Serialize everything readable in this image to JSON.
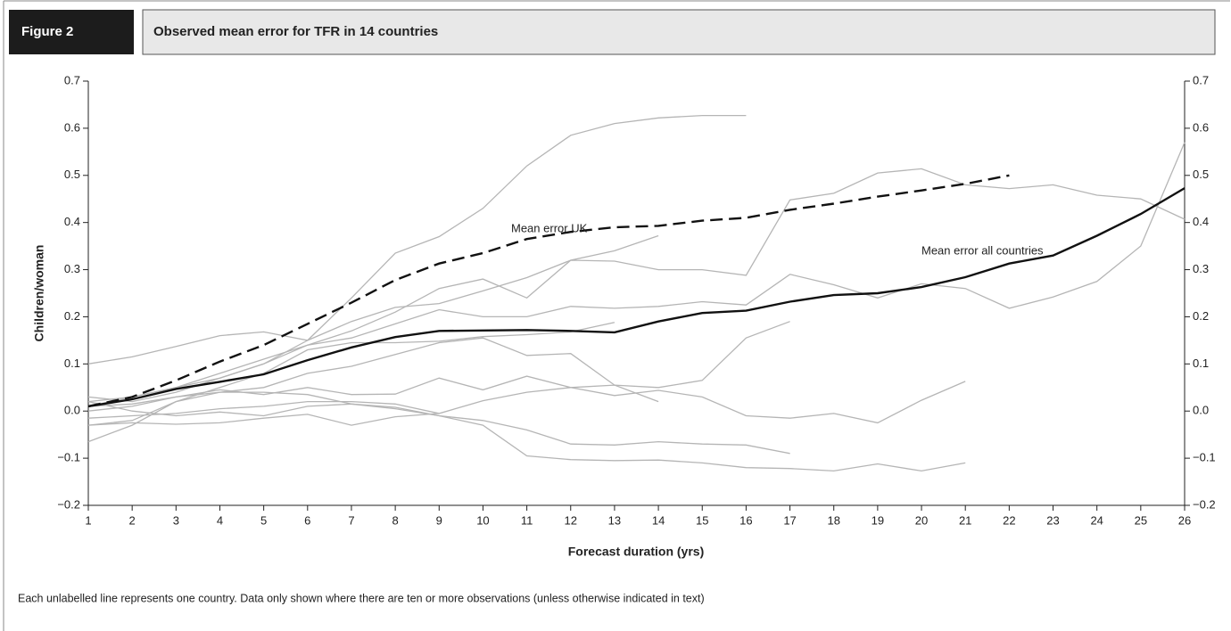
{
  "figure_label": "Figure 2",
  "chart_data": {
    "type": "line",
    "title": "Observed mean error for TFR in 14 countries",
    "x_label": "Forecast duration (yrs)",
    "y_label": "Children/woman",
    "note": "Each unlabelled line represents one country. Data only shown where there are ten or more observations (unless otherwise indicated in text)",
    "x": [
      1,
      2,
      3,
      4,
      5,
      6,
      7,
      8,
      9,
      10,
      11,
      12,
      13,
      14,
      15,
      16,
      17,
      18,
      19,
      20,
      21,
      22,
      23,
      24,
      25,
      26
    ],
    "xlim": [
      1,
      26
    ],
    "xticks": [
      1,
      2,
      3,
      4,
      5,
      6,
      7,
      8,
      9,
      10,
      11,
      12,
      13,
      14,
      15,
      16,
      17,
      18,
      19,
      20,
      21,
      22,
      23,
      24,
      25,
      26
    ],
    "ylim": [
      -0.2,
      0.7
    ],
    "yticks": [
      {
        "value": -0.2,
        "label": "−0.2"
      },
      {
        "value": -0.1,
        "label": "−0.1"
      },
      {
        "value": 0,
        "label": "0.0"
      },
      0.1,
      0.2,
      0.3,
      0.4,
      0.5,
      0.6,
      0.7
    ],
    "y2lim": [
      -0.2,
      0.7
    ],
    "y2ticks": [
      {
        "value": -0.2,
        "label": "−0.2"
      },
      {
        "value": -0.1,
        "label": "−0.1"
      },
      {
        "value": 0,
        "label": "0.0"
      },
      0.1,
      0.2,
      0.3,
      0.4,
      0.5,
      0.6,
      0.7
    ],
    "series": [
      {
        "color": "#b5b5b5",
        "values": [
          0.02,
          0.03,
          0.05,
          0.07,
          0.1,
          0.15,
          0.24,
          0.335,
          0.37,
          0.43,
          0.52,
          0.585,
          0.61,
          0.622,
          0.627,
          0.627,
          null,
          null,
          null,
          null,
          null,
          null,
          null,
          null,
          null,
          null
        ]
      },
      {
        "color": "#b5b5b5",
        "values": [
          0.1,
          0.115,
          0.137,
          0.16,
          0.168,
          0.15,
          0.19,
          0.22,
          0.228,
          0.255,
          0.283,
          0.32,
          0.318,
          0.3,
          0.3,
          0.288,
          0.448,
          0.462,
          0.505,
          0.514,
          0.48,
          0.472,
          0.48,
          0.458,
          0.45,
          0.407
        ]
      },
      {
        "color": "#b5b5b5",
        "values": [
          0.03,
          0.02,
          0.04,
          0.07,
          0.1,
          0.14,
          0.17,
          0.21,
          0.26,
          0.28,
          0.24,
          0.32,
          0.34,
          0.372,
          null,
          null,
          null,
          null,
          null,
          null,
          null,
          null,
          null,
          null,
          null,
          null
        ]
      },
      {
        "color": "#b5b5b5",
        "values": [
          0.01,
          0.03,
          0.05,
          0.08,
          0.11,
          0.14,
          0.155,
          0.185,
          0.215,
          0.2,
          0.2,
          0.222,
          0.218,
          0.222,
          0.232,
          0.225,
          0.29,
          0.268,
          0.24,
          0.27,
          0.26,
          0.218,
          0.242,
          0.275,
          0.35,
          0.57
        ]
      },
      {
        "color": "#b5b5b5",
        "values": [
          -0.03,
          -0.02,
          0.02,
          0.05,
          0.08,
          0.13,
          0.145,
          0.145,
          0.148,
          0.158,
          0.162,
          0.168,
          0.188,
          null,
          null,
          null,
          null,
          null,
          null,
          null,
          null,
          null,
          null,
          null,
          null,
          null
        ]
      },
      {
        "color": "#b5b5b5",
        "values": [
          0.0,
          0.01,
          0.03,
          0.04,
          0.05,
          0.08,
          0.095,
          0.12,
          0.145,
          0.155,
          0.118,
          0.122,
          0.055,
          0.02,
          null,
          null,
          null,
          null,
          null,
          null,
          null,
          null,
          null,
          null,
          null,
          null
        ]
      },
      {
        "color": "#b5b5b5",
        "values": [
          -0.015,
          -0.01,
          -0.005,
          0.005,
          0.01,
          0.02,
          0.02,
          0.015,
          -0.005,
          0.022,
          0.04,
          0.05,
          0.055,
          0.05,
          0.065,
          0.155,
          0.19,
          null,
          null,
          null,
          null,
          null,
          null,
          null,
          null,
          null
        ]
      },
      {
        "color": "#b5b5b5",
        "values": [
          0.01,
          0.015,
          0.03,
          0.045,
          0.035,
          0.05,
          0.035,
          0.036,
          0.07,
          0.045,
          0.074,
          0.05,
          0.033,
          0.044,
          0.03,
          -0.01,
          -0.015,
          -0.005,
          -0.025,
          0.023,
          0.063,
          null,
          null,
          null,
          null,
          null
        ]
      },
      {
        "color": "#b5b5b5",
        "values": [
          -0.065,
          -0.03,
          0.02,
          0.04,
          0.04,
          0.035,
          0.015,
          0.008,
          -0.01,
          -0.03,
          -0.095,
          -0.103,
          -0.105,
          -0.104,
          -0.11,
          -0.12,
          -0.122,
          -0.127,
          -0.112,
          -0.127,
          -0.11,
          null,
          null,
          null,
          null,
          null
        ]
      },
      {
        "color": "#b5b5b5",
        "values": [
          0.02,
          0.0,
          -0.01,
          -0.002,
          -0.01,
          0.01,
          0.015,
          0.005,
          -0.01,
          -0.02,
          -0.04,
          -0.07,
          -0.072,
          -0.065,
          -0.07,
          -0.072,
          -0.09,
          null,
          null,
          null,
          null,
          null,
          null,
          null,
          null,
          null
        ]
      },
      {
        "color": "#b5b5b5",
        "values": [
          -0.03,
          -0.025,
          -0.028,
          -0.025,
          -0.015,
          -0.007,
          -0.03,
          -0.012,
          -0.005,
          null,
          null,
          null,
          null,
          null,
          null,
          null,
          null,
          null,
          null,
          null,
          null,
          null,
          null,
          null,
          null,
          null
        ]
      },
      {
        "name": "Mean error UK",
        "color": "#111111",
        "style": "dashed",
        "values": [
          0.01,
          0.03,
          0.065,
          0.105,
          0.14,
          0.185,
          0.23,
          0.278,
          0.313,
          0.335,
          0.365,
          0.38,
          0.39,
          0.393,
          0.404,
          0.41,
          0.427,
          0.44,
          0.455,
          0.468,
          0.482,
          0.5,
          null,
          null,
          null,
          null
        ]
      },
      {
        "name": "Mean error all countries",
        "color": "#111111",
        "style": "solid",
        "values": [
          0.01,
          0.025,
          0.047,
          0.062,
          0.078,
          0.108,
          0.135,
          0.157,
          0.17,
          0.171,
          0.172,
          0.17,
          0.167,
          0.19,
          0.208,
          0.213,
          0.232,
          0.246,
          0.25,
          0.263,
          0.284,
          0.313,
          0.33,
          0.372,
          0.418,
          0.473
        ]
      }
    ]
  }
}
